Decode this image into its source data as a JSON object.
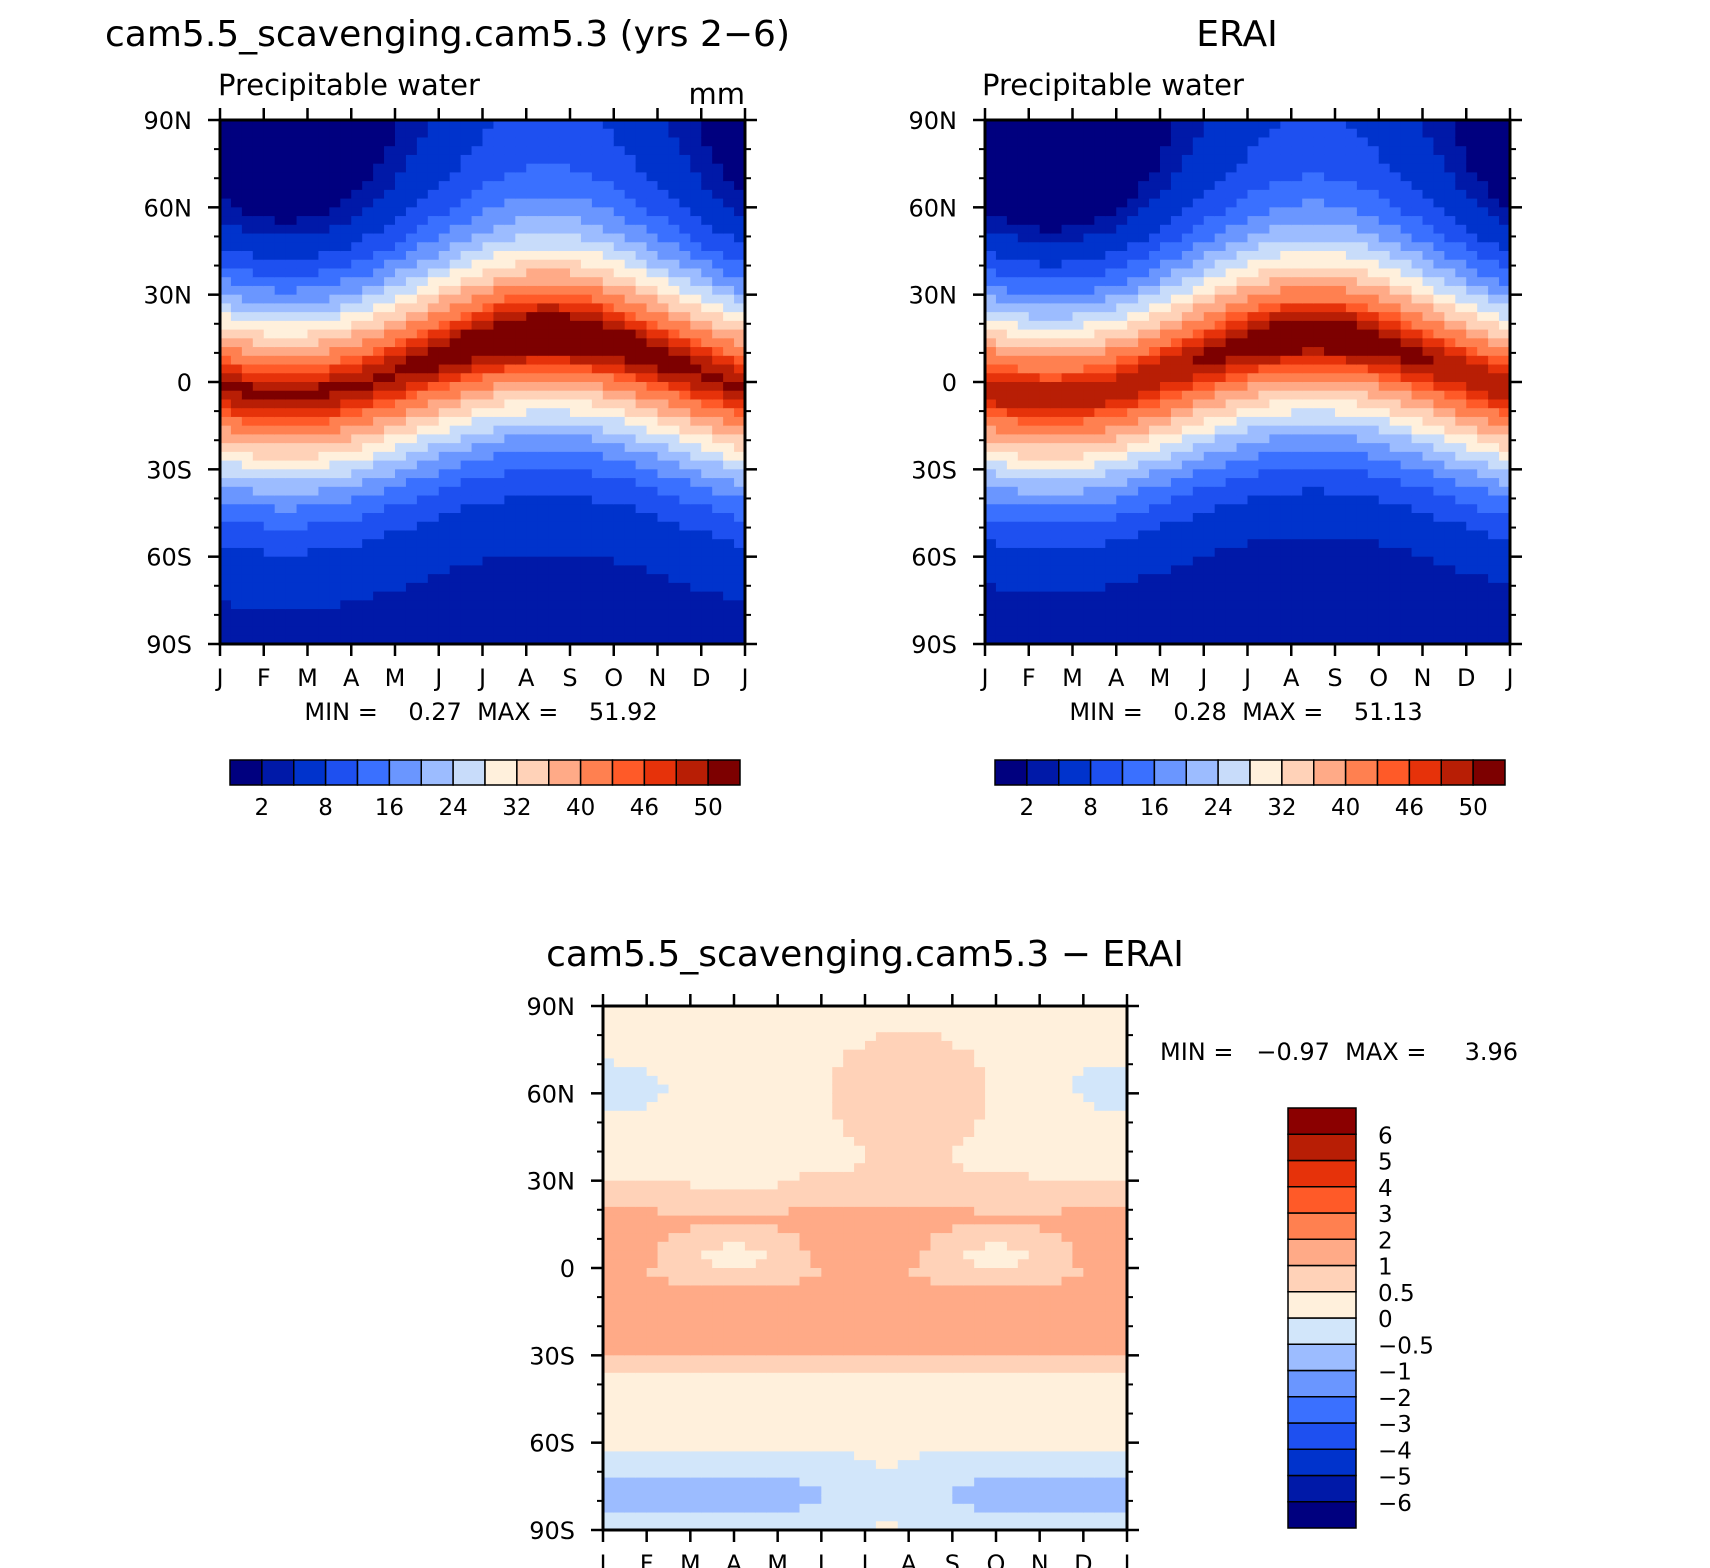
{
  "chart_data": [
    {
      "type": "heatmap",
      "title": "cam5.5_scavenging.cam5.3 (yrs 2−6)",
      "subtitle": "Precipitable water",
      "units": "mm",
      "x_tick_labels": [
        "J",
        "F",
        "M",
        "A",
        "M",
        "J",
        "J",
        "A",
        "S",
        "O",
        "N",
        "D",
        "J"
      ],
      "y_tick_labels": [
        "90N",
        "60N",
        "30N",
        "0",
        "30S",
        "60S",
        "90S"
      ],
      "xlim": [
        0,
        12
      ],
      "ylim": [
        -90,
        90
      ],
      "stats_text": "MIN =    0.27  MAX =    51.92",
      "min": 0.27,
      "max": 51.92,
      "colorbar_labels": [
        "2",
        "8",
        "16",
        "24",
        "32",
        "40",
        "46",
        "50"
      ],
      "levels": [
        0,
        2,
        4,
        8,
        12,
        16,
        20,
        24,
        28,
        32,
        36,
        40,
        44,
        46,
        48,
        50
      ],
      "colors": [
        "#00007f",
        "#0019a8",
        "#0033cc",
        "#1e50f0",
        "#3a70ff",
        "#6a96ff",
        "#9cbcff",
        "#c8dcfa",
        "#fff0dc",
        "#ffd2b8",
        "#ffaa87",
        "#ff8050",
        "#ff5a28",
        "#e6320a",
        "#b81e05",
        "#7d0000"
      ],
      "model": "A",
      "peak_lat": 10,
      "peak_month": 7.5
    },
    {
      "type": "heatmap",
      "title": "ERAI",
      "subtitle": "Precipitable water",
      "x_tick_labels": [
        "J",
        "F",
        "M",
        "A",
        "M",
        "J",
        "J",
        "A",
        "S",
        "O",
        "N",
        "D",
        "J"
      ],
      "y_tick_labels": [
        "90N",
        "60N",
        "30N",
        "0",
        "30S",
        "60S",
        "90S"
      ],
      "xlim": [
        0,
        12
      ],
      "ylim": [
        -90,
        90
      ],
      "stats_text": "MIN =    0.28  MAX =    51.13",
      "min": 0.28,
      "max": 51.13,
      "colorbar_labels": [
        "2",
        "8",
        "16",
        "24",
        "32",
        "40",
        "46",
        "50"
      ],
      "levels": [
        0,
        2,
        4,
        8,
        12,
        16,
        20,
        24,
        28,
        32,
        36,
        40,
        44,
        46,
        48,
        50
      ],
      "colors": [
        "#00007f",
        "#0019a8",
        "#0033cc",
        "#1e50f0",
        "#3a70ff",
        "#6a96ff",
        "#9cbcff",
        "#c8dcfa",
        "#fff0dc",
        "#ffd2b8",
        "#ffaa87",
        "#ff8050",
        "#ff5a28",
        "#e6320a",
        "#b81e05",
        "#7d0000"
      ],
      "model": "B",
      "peak_lat": 9,
      "peak_month": 7.5
    },
    {
      "type": "heatmap",
      "title": "cam5.5_scavenging.cam5.3 − ERAI",
      "x_tick_labels": [
        "J",
        "F",
        "M",
        "A",
        "M",
        "J",
        "J",
        "A",
        "S",
        "O",
        "N",
        "D",
        "J"
      ],
      "y_tick_labels": [
        "90N",
        "60N",
        "30N",
        "0",
        "30S",
        "60S",
        "90S"
      ],
      "xlim": [
        0,
        12
      ],
      "ylim": [
        -90,
        90
      ],
      "stats_text": "MIN =   −0.97  MAX =     3.96",
      "min": -0.97,
      "max": 3.96,
      "colorbar_labels": [
        "6",
        "5",
        "4",
        "3",
        "2",
        "1",
        "0.5",
        "0",
        "−0.5",
        "−1",
        "−2",
        "−3",
        "−4",
        "−5",
        "−6"
      ],
      "levels": [
        -6,
        -5,
        -4,
        -3,
        -2,
        -1,
        -0.5,
        0,
        0.5,
        1,
        2,
        3,
        4,
        5,
        6
      ],
      "colors": [
        "#00007f",
        "#0019a8",
        "#0033cc",
        "#1e50f0",
        "#3a70ff",
        "#6a96ff",
        "#9cbcff",
        "#d2e6fa",
        "#fff0dc",
        "#ffd2b8",
        "#ffaa87",
        "#ff8050",
        "#ff5a28",
        "#e6320a",
        "#b81e05",
        "#8b0000"
      ],
      "model": "D"
    }
  ]
}
